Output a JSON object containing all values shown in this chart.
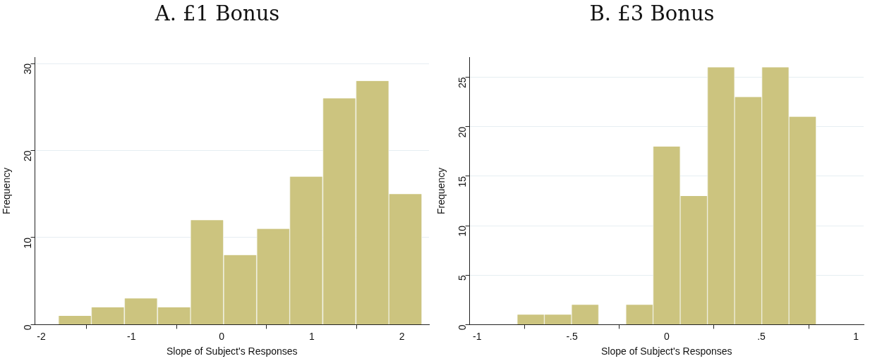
{
  "chart_data": [
    {
      "type": "histogram",
      "title": "A. £1 Bonus",
      "xlabel": "Slope of Subject's Responses",
      "ylabel": "Frequency",
      "bins": [
        -1.81,
        -1.445,
        -1.08,
        -0.71,
        -0.345,
        0.02,
        0.39,
        0.755,
        1.12,
        1.49,
        1.855,
        2.22
      ],
      "values": [
        1,
        2,
        3,
        2,
        12,
        8,
        11,
        17,
        26,
        28,
        15
      ],
      "color": "#ccc47f",
      "xlim": [
        -2.07,
        2.3
      ],
      "xticks": [
        -2,
        -1,
        0,
        1,
        2
      ],
      "ylim": [
        0,
        30.7
      ],
      "yticks": [
        0,
        10,
        20,
        30
      ],
      "grid": "y"
    },
    {
      "type": "histogram",
      "title": "B. £3 Bonus",
      "xlabel": "Slope of Subject's Responses",
      "ylabel": "Frequency",
      "bins": [
        -0.789,
        -0.646,
        -0.502,
        -0.359,
        -0.215,
        -0.072,
        0.072,
        0.215,
        0.359,
        0.502,
        0.646,
        0.789
      ],
      "values": [
        1,
        1,
        2,
        0,
        2,
        18,
        13,
        26,
        23,
        26,
        21
      ],
      "color": "#ccc47f",
      "xlim": [
        -1.04,
        1.04
      ],
      "xticks": [
        -1,
        {
          "value": -0.5,
          "label": "-.5"
        },
        0,
        {
          "value": 0.5,
          "label": ".5"
        },
        1
      ],
      "ylim": [
        0,
        27
      ],
      "yticks": [
        0,
        5,
        10,
        15,
        20,
        25
      ],
      "grid": "y"
    }
  ]
}
